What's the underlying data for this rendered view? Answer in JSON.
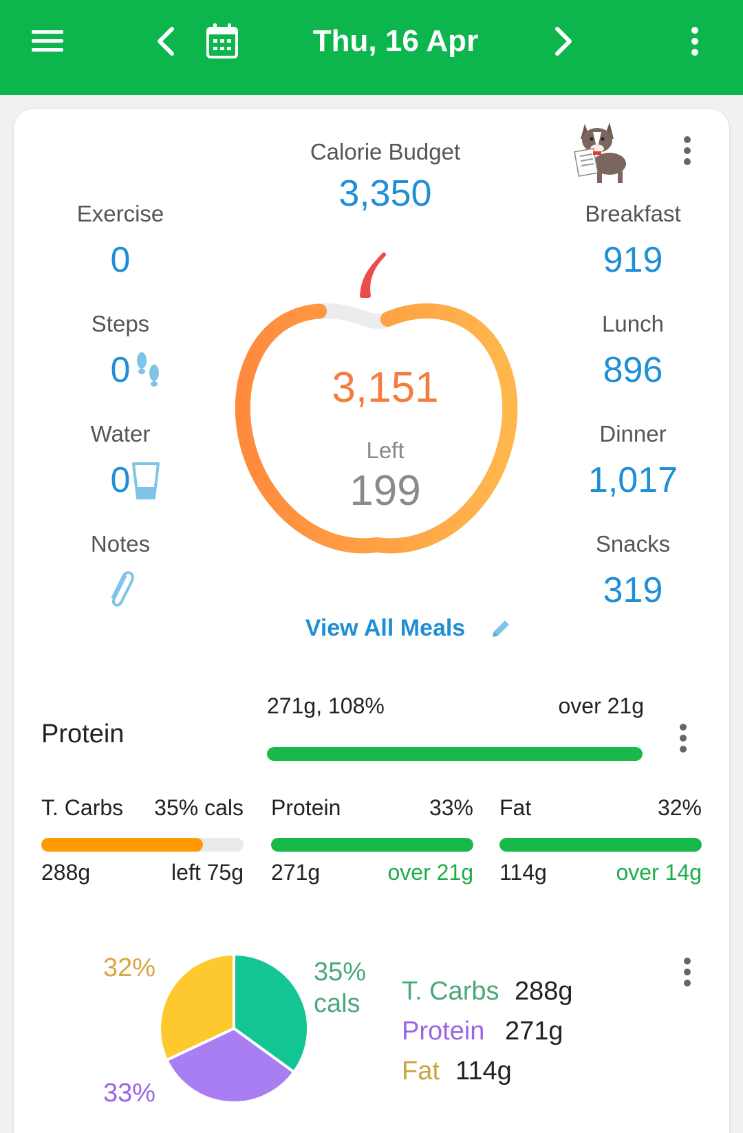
{
  "header": {
    "date": "Thu, 16 Apr",
    "icons": [
      "menu-icon",
      "chevron-left-icon",
      "calendar-icon",
      "chevron-right-icon",
      "more-vert-icon"
    ]
  },
  "summary": {
    "budget_label": "Calorie Budget",
    "budget_value": "3,350",
    "consumed": "3,151",
    "left_label": "Left",
    "left_value": "199",
    "consumed_fraction": 0.94,
    "view_all": "View All Meals",
    "left_column": [
      {
        "label": "Exercise",
        "value": "0"
      },
      {
        "label": "Steps",
        "value": "0"
      },
      {
        "label": "Water",
        "value": "0"
      },
      {
        "label": "Notes",
        "value": ""
      }
    ],
    "right_column": [
      {
        "label": "Breakfast",
        "value": "919"
      },
      {
        "label": "Lunch",
        "value": "896"
      },
      {
        "label": "Dinner",
        "value": "1,017"
      },
      {
        "label": "Snacks",
        "value": "319"
      }
    ]
  },
  "protein_goal": {
    "label": "Protein",
    "amount": "271g, 108%",
    "status": "over 21g",
    "progress": 1.0,
    "color": "#19b84a"
  },
  "macros": [
    {
      "name": "T. Carbs",
      "pct": "35% cals",
      "amount": "288g",
      "status": "left 75g",
      "progress": 0.8,
      "color": "#ff9a00",
      "status_color": "#222"
    },
    {
      "name": "Protein",
      "pct": "33%",
      "amount": "271g",
      "status": "over 21g",
      "progress": 1.0,
      "color": "#19b84a",
      "status_color": "#19ad4a"
    },
    {
      "name": "Fat",
      "pct": "32%",
      "amount": "114g",
      "status": "over 14g",
      "progress": 1.0,
      "color": "#19b84a",
      "status_color": "#19ad4a"
    }
  ],
  "chart_data": {
    "type": "pie",
    "slices": [
      {
        "name": "T. Carbs",
        "value": 35,
        "color": "#12c592"
      },
      {
        "name": "Protein",
        "value": 33,
        "color": "#a97ef3"
      },
      {
        "name": "Fat",
        "value": 32,
        "color": "#fec92e"
      }
    ],
    "labels": {
      "carbs_pct": "35%",
      "carbs_unit": "cals",
      "protein_pct": "33%",
      "fat_pct": "32%"
    },
    "legend": [
      {
        "name": "T. Carbs",
        "value": "288g",
        "color": "#4aa87b"
      },
      {
        "name": "Protein",
        "value": "271g",
        "color": "#9a66e6"
      },
      {
        "name": "Fat",
        "value": "114g",
        "color": "#c9a640"
      }
    ]
  }
}
